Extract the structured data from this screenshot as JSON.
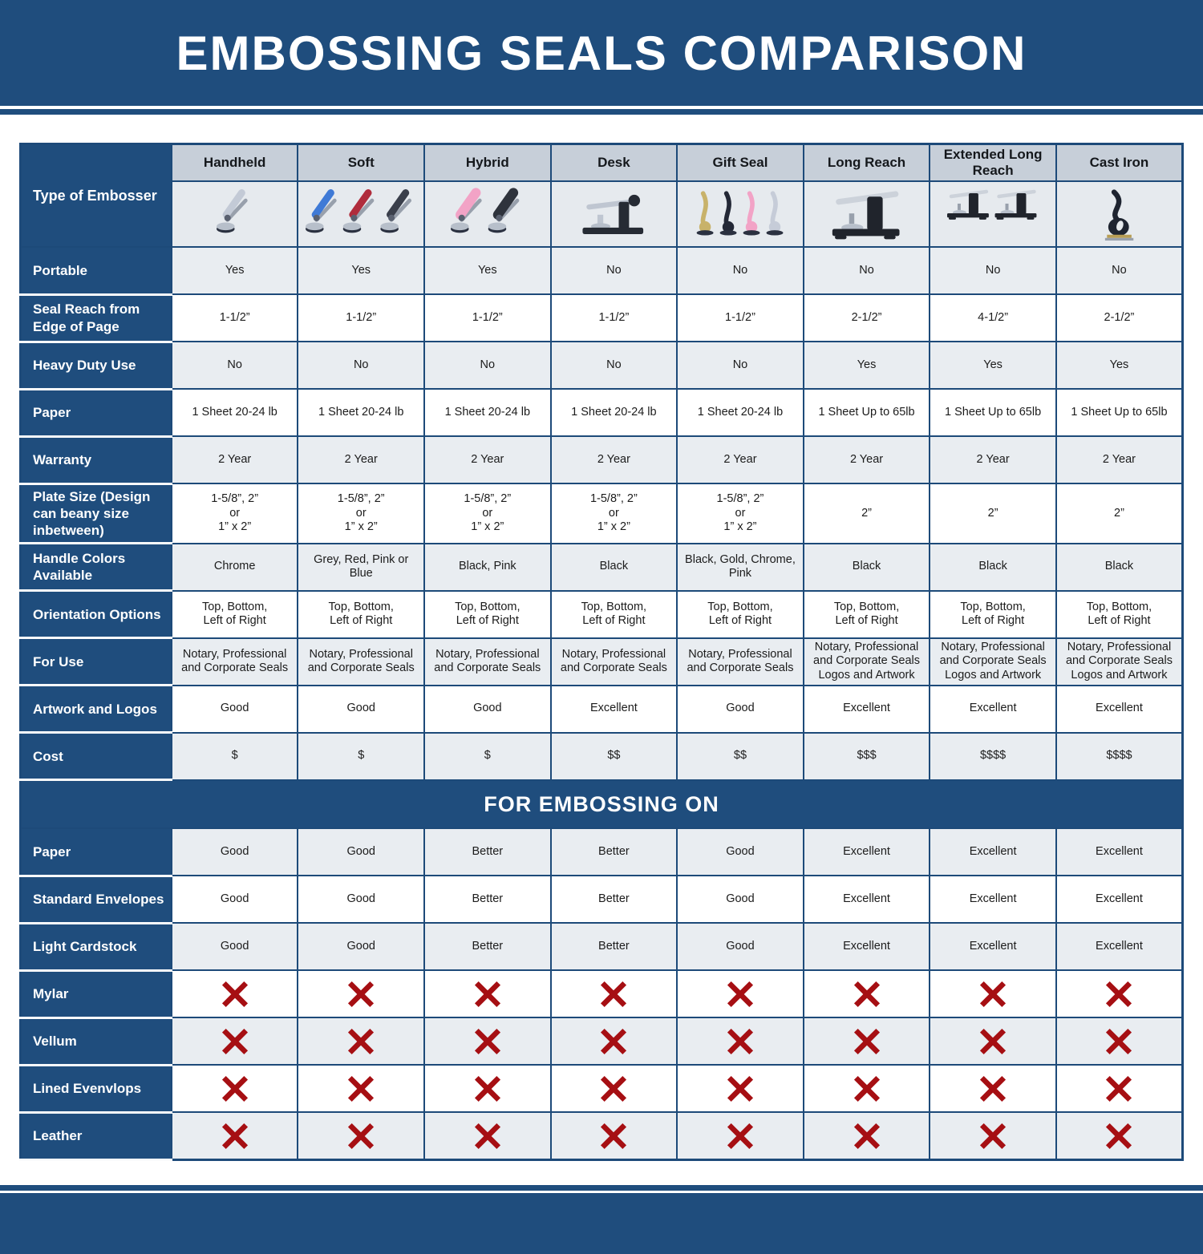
{
  "chart_data": {
    "type": "table",
    "title": "EMBOSSING SEALS COMPARISON",
    "section_title": "FOR EMBOSSING ON",
    "corner_label": "Type of Embosser",
    "columns": [
      "Handheld",
      "Soft",
      "Hybrid",
      "Desk",
      "Gift Seal",
      "Long Reach",
      "Extended Long Reach",
      "Cast Iron"
    ],
    "spec_rows": [
      {
        "label": "Portable",
        "values": [
          "Yes",
          "Yes",
          "Yes",
          "No",
          "No",
          "No",
          "No",
          "No"
        ]
      },
      {
        "label": "Seal Reach from Edge of Page",
        "values": [
          "1-1/2”",
          "1-1/2”",
          "1-1/2”",
          "1-1/2”",
          "1-1/2”",
          "2-1/2”",
          "4-1/2”",
          "2-1/2”"
        ]
      },
      {
        "label": "Heavy Duty Use",
        "values": [
          "No",
          "No",
          "No",
          "No",
          "No",
          "Yes",
          "Yes",
          "Yes"
        ]
      },
      {
        "label": "Paper",
        "values": [
          "1 Sheet 20-24 lb",
          "1 Sheet 20-24 lb",
          "1 Sheet 20-24 lb",
          "1 Sheet 20-24 lb",
          "1 Sheet 20-24 lb",
          "1 Sheet Up to 65lb",
          "1 Sheet Up to 65lb",
          "1 Sheet Up to 65lb"
        ]
      },
      {
        "label": "Warranty",
        "values": [
          "2 Year",
          "2 Year",
          "2 Year",
          "2 Year",
          "2 Year",
          "2 Year",
          "2 Year",
          "2 Year"
        ]
      },
      {
        "label": "Plate Size (Design can beany size inbetween)",
        "values": [
          "1-5/8”, 2”\nor\n1” x 2”",
          "1-5/8”, 2”\nor\n1” x 2”",
          "1-5/8”, 2”\nor\n1” x 2”",
          "1-5/8”, 2”\nor\n1” x 2”",
          "1-5/8”, 2”\nor\n1” x 2”",
          "2”",
          "2”",
          "2”"
        ]
      },
      {
        "label": "Handle Colors Available",
        "values": [
          "Chrome",
          "Grey, Red, Pink or Blue",
          "Black, Pink",
          "Black",
          "Black, Gold, Chrome, Pink",
          "Black",
          "Black",
          "Black"
        ]
      },
      {
        "label": "Orientation Options",
        "values": [
          "Top, Bottom,\nLeft of Right",
          "Top, Bottom,\nLeft of Right",
          "Top, Bottom,\nLeft of Right",
          "Top, Bottom,\nLeft of Right",
          "Top, Bottom,\nLeft of Right",
          "Top, Bottom,\nLeft of Right",
          "Top, Bottom,\nLeft of Right",
          "Top, Bottom,\nLeft of Right"
        ]
      },
      {
        "label": "For Use",
        "values": [
          "Notary, Professional\nand Corporate Seals",
          "Notary, Professional\nand Corporate Seals",
          "Notary, Professional\nand Corporate Seals",
          "Notary, Professional\nand Corporate Seals",
          "Notary, Professional\nand Corporate Seals",
          "Notary, Professional\nand Corporate Seals\nLogos and Artwork",
          "Notary, Professional\nand Corporate Seals\nLogos and Artwork",
          "Notary, Professional\nand Corporate Seals\nLogos and Artwork"
        ]
      },
      {
        "label": "Artwork and Logos",
        "values": [
          "Good",
          "Good",
          "Good",
          "Excellent",
          "Good",
          "Excellent",
          "Excellent",
          "Excellent"
        ]
      },
      {
        "label": "Cost",
        "values": [
          "$",
          "$",
          "$",
          "$$",
          "$$",
          "$$$",
          "$$$$",
          "$$$$"
        ]
      }
    ],
    "embossing_rows": [
      {
        "label": "Paper",
        "values": [
          "Good",
          "Good",
          "Better",
          "Better",
          "Good",
          "Excellent",
          "Excellent",
          "Excellent"
        ]
      },
      {
        "label": "Standard Envelopes",
        "values": [
          "Good",
          "Good",
          "Better",
          "Better",
          "Good",
          "Excellent",
          "Excellent",
          "Excellent"
        ]
      },
      {
        "label": "Light Cardstock",
        "values": [
          "Good",
          "Good",
          "Better",
          "Better",
          "Good",
          "Excellent",
          "Excellent",
          "Excellent"
        ]
      },
      {
        "label": "Mylar",
        "values": [
          "x-icon",
          "x-icon",
          "x-icon",
          "x-icon",
          "x-icon",
          "x-icon",
          "x-icon",
          "x-icon"
        ]
      },
      {
        "label": "Vellum",
        "values": [
          "x-icon",
          "x-icon",
          "x-icon",
          "x-icon",
          "x-icon",
          "x-icon",
          "x-icon",
          "x-icon"
        ]
      },
      {
        "label": "Lined Evenvlops",
        "values": [
          "x-icon",
          "x-icon",
          "x-icon",
          "x-icon",
          "x-icon",
          "x-icon",
          "x-icon",
          "x-icon"
        ]
      },
      {
        "label": "Leather",
        "values": [
          "x-icon",
          "x-icon",
          "x-icon",
          "x-icon",
          "x-icon",
          "x-icon",
          "x-icon",
          "x-icon"
        ]
      }
    ]
  },
  "product_icons": [
    {
      "name": "handheld-embosser-image",
      "variant": "plier",
      "colors": [
        "#c3cad6"
      ]
    },
    {
      "name": "soft-embosser-image",
      "variant": "plier",
      "colors": [
        "#3f7ad6",
        "#b02c3c",
        "#3a3f4b"
      ]
    },
    {
      "name": "hybrid-embosser-image",
      "variant": "plier-fat",
      "colors": [
        "#f2a3c6",
        "#2e333c"
      ]
    },
    {
      "name": "desk-embosser-image",
      "variant": "desk",
      "colors": [
        "#262b34"
      ]
    },
    {
      "name": "gift-seal-embosser-image",
      "variant": "gift",
      "colors": [
        "#c8b26a",
        "#232836",
        "#f2a3c6",
        "#c6ccd8"
      ]
    },
    {
      "name": "long-reach-embosser-image",
      "variant": "press",
      "colors": [
        "#20242c"
      ]
    },
    {
      "name": "extended-long-reach-embosser-image",
      "variant": "press2",
      "colors": [
        "#20242c",
        "#20242c"
      ]
    },
    {
      "name": "cast-iron-embosser-image",
      "variant": "cast",
      "colors": [
        "#1e2430"
      ]
    }
  ],
  "colors": {
    "navy": "#1f4d7d",
    "border": "#1d4a79",
    "header_bg": "#c7cfd9",
    "row_shade": "#e9edf1",
    "image_row_bg": "#e6eaee",
    "x_red": "#a60f13",
    "text": "#1c1c1c"
  }
}
